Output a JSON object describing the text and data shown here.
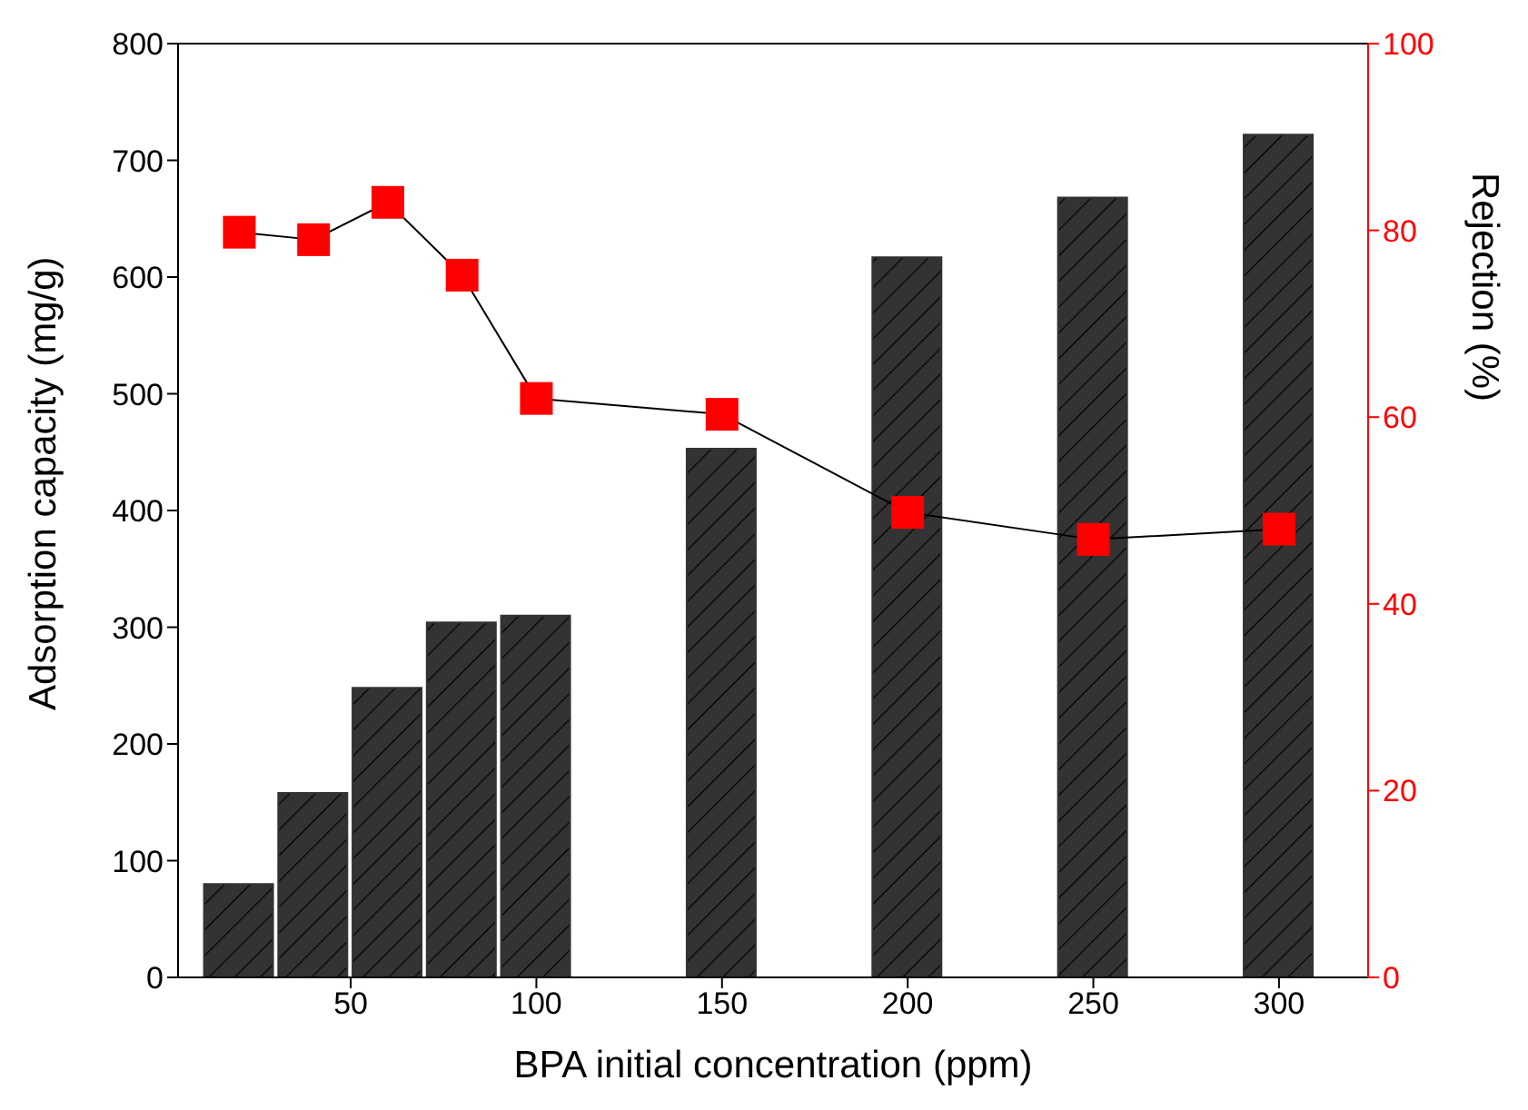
{
  "chart_data": {
    "type": "bar",
    "xlabel": "BPA initial concentration (ppm)",
    "ylabel": "Adsorption capacity (mg/g)",
    "y2label": "Rejection (%)",
    "x": [
      20,
      40,
      60,
      80,
      100,
      150,
      200,
      250,
      300
    ],
    "xlim": [
      3.5,
      324
    ],
    "xticks": [
      50,
      100,
      150,
      200,
      250,
      300
    ],
    "ylim": [
      0,
      800
    ],
    "yticks": [
      0,
      100,
      200,
      300,
      400,
      500,
      600,
      700,
      800
    ],
    "y2lim": [
      0,
      100
    ],
    "y2ticks": [
      0,
      20,
      40,
      60,
      80,
      100
    ],
    "marker": "square",
    "series": [
      {
        "color": "#333333",
        "values": [
          80,
          158,
          248,
          304,
          310,
          453,
          617,
          668,
          722
        ]
      },
      {
        "type": "line",
        "axis": "y2",
        "color": "#ff0000",
        "values": [
          79.8,
          79,
          83,
          75.2,
          62,
          60.3,
          49.8,
          46.9,
          48
        ]
      }
    ]
  }
}
